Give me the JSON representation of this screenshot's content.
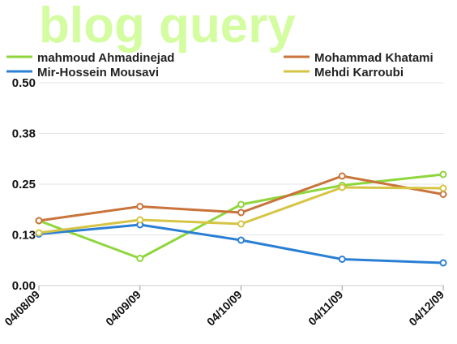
{
  "chart_data": {
    "type": "line",
    "title": "blog query",
    "x": [
      "04/08/09",
      "04/09/09",
      "04/10/09",
      "04/11/09",
      "04/12/09"
    ],
    "y_ticks": [
      "0.00",
      "0.13",
      "0.25",
      "0.38",
      "0.50"
    ],
    "ylim": [
      0,
      0.5
    ],
    "grid": true,
    "legend_position": "top",
    "series": [
      {
        "name": "mahmoud Ahmadinejad",
        "color": "#8fd63c",
        "values": [
          0.16,
          0.067,
          0.2,
          0.247,
          0.274
        ]
      },
      {
        "name": "Mohammad Khatami",
        "color": "#c8743a",
        "values": [
          0.16,
          0.195,
          0.18,
          0.27,
          0.225
        ]
      },
      {
        "name": "Mir-Hossein Mousavi",
        "color": "#2a7fd4",
        "values": [
          0.127,
          0.15,
          0.112,
          0.065,
          0.056
        ]
      },
      {
        "name": "Mehdi Karroubi",
        "color": "#d6c444",
        "values": [
          0.13,
          0.162,
          0.152,
          0.242,
          0.24
        ]
      }
    ],
    "title_color": "#d4fca0",
    "grid_color": "#e4e4e4",
    "axis_color": "#cccccc"
  }
}
